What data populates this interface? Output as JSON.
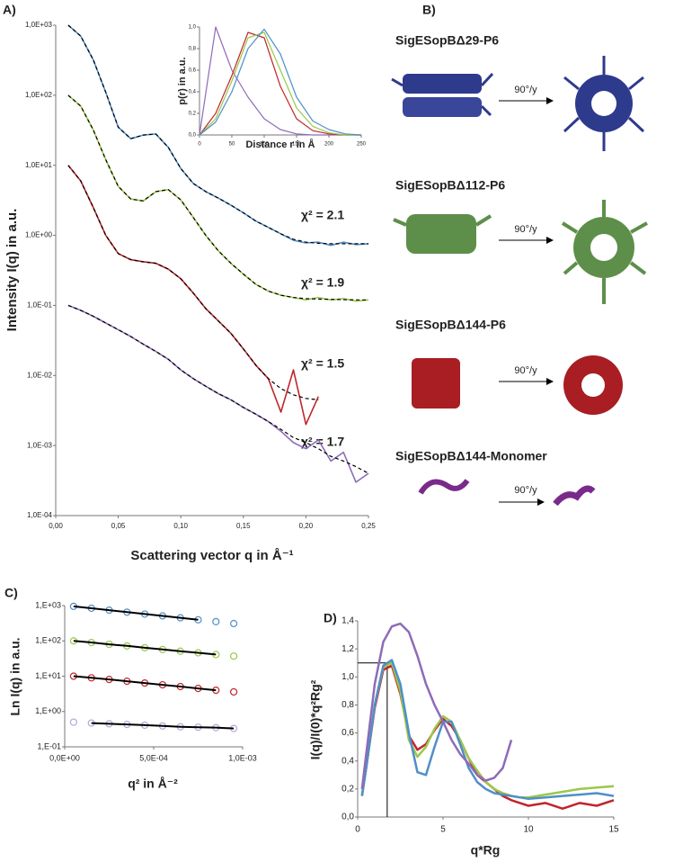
{
  "chart_data": [
    {
      "type": "line",
      "panel_label": "A)",
      "xlabel": "Scattering vector q in Å⁻¹",
      "ylabel": "Intensity I(q) in a.u.",
      "yscale": "log",
      "xlim": [
        0,
        0.25
      ],
      "xticks": [
        {
          "value": 0,
          "label": "0,00"
        },
        {
          "value": 0.05,
          "label": "0,05"
        },
        {
          "value": 0.1,
          "label": "0,10"
        },
        {
          "value": 0.15,
          "label": "0,15"
        },
        {
          "value": 0.2,
          "label": "0,20"
        },
        {
          "value": 0.25,
          "label": "0,25"
        }
      ],
      "ylim": [
        0.0001,
        1000
      ],
      "yticks": [
        {
          "value": 0.0001,
          "label": "1,0E-04"
        },
        {
          "value": 0.001,
          "label": "1,0E-03"
        },
        {
          "value": 0.01,
          "label": "1,0E-02"
        },
        {
          "value": 0.1,
          "label": "1,0E-01"
        },
        {
          "value": 1,
          "label": "1,0E+00"
        },
        {
          "value": 10,
          "label": "1,0E+01"
        },
        {
          "value": 100,
          "label": "1,0E+02"
        },
        {
          "value": 1000,
          "label": "1,0E+03"
        }
      ],
      "annotations": [
        "χ² = 2.1",
        "χ² = 1.9",
        "χ² = 1.5",
        "χ² = 1.7"
      ],
      "x": [
        0.01,
        0.02,
        0.03,
        0.04,
        0.05,
        0.06,
        0.07,
        0.08,
        0.09,
        0.1,
        0.11,
        0.12,
        0.13,
        0.14,
        0.15,
        0.16,
        0.17,
        0.18,
        0.19,
        0.2,
        0.21,
        0.22,
        0.23,
        0.24,
        0.25
      ],
      "series": [
        {
          "color": "#4f8fc8",
          "style": "solid",
          "values": [
            1000,
            700,
            320,
            110,
            35,
            24,
            27,
            28,
            18,
            9,
            5.5,
            4.2,
            3.4,
            2.7,
            2.1,
            1.6,
            1.3,
            1.05,
            0.85,
            0.78,
            0.8,
            0.72,
            0.8,
            0.74,
            0.76
          ]
        },
        {
          "color": "#9bc84a",
          "style": "solid",
          "values": [
            100,
            70,
            32,
            12,
            5,
            3.3,
            3.1,
            4.2,
            4.5,
            3.2,
            1.8,
            1.0,
            0.6,
            0.4,
            0.28,
            0.2,
            0.16,
            0.14,
            0.13,
            0.12,
            0.13,
            0.12,
            0.125,
            0.115,
            0.12
          ]
        },
        {
          "color": "#c0262a",
          "style": "solid",
          "values": [
            10,
            6,
            2.5,
            1.0,
            0.55,
            0.45,
            0.42,
            0.4,
            0.33,
            0.24,
            0.15,
            0.09,
            0.06,
            0.04,
            0.024,
            0.014,
            0.009,
            0.003,
            0.012,
            0.002,
            0.005,
            null,
            null,
            null,
            null
          ]
        },
        {
          "color": "#8e6bb8",
          "style": "solid",
          "values": [
            0.1,
            0.085,
            0.07,
            0.056,
            0.045,
            0.036,
            0.028,
            0.022,
            0.017,
            0.012,
            0.009,
            0.007,
            0.0055,
            0.0045,
            0.0035,
            0.0028,
            0.0022,
            0.0016,
            0.0011,
            0.0009,
            0.0012,
            0.0006,
            0.0008,
            0.0003,
            0.0004
          ]
        },
        {
          "color": "#000000",
          "style": "dashed",
          "values": [
            1000,
            700,
            320,
            110,
            35,
            24,
            27,
            28,
            18,
            9,
            5.5,
            4.2,
            3.4,
            2.7,
            2.1,
            1.6,
            1.3,
            1.05,
            0.88,
            0.8,
            0.77,
            0.76,
            0.76,
            0.76,
            0.76
          ]
        },
        {
          "color": "#000000",
          "style": "dashed",
          "values": [
            100,
            70,
            32,
            12,
            5,
            3.3,
            3.1,
            4.2,
            4.5,
            3.2,
            1.8,
            1.0,
            0.6,
            0.4,
            0.28,
            0.2,
            0.16,
            0.14,
            0.13,
            0.125,
            0.123,
            0.122,
            0.121,
            0.12,
            0.12
          ]
        },
        {
          "color": "#000000",
          "style": "dashed",
          "values": [
            10,
            6,
            2.5,
            1.0,
            0.55,
            0.45,
            0.42,
            0.4,
            0.33,
            0.24,
            0.15,
            0.09,
            0.06,
            0.04,
            0.024,
            0.014,
            0.009,
            0.0065,
            0.0053,
            0.0047,
            0.0045,
            null,
            null,
            null,
            null
          ]
        },
        {
          "color": "#000000",
          "style": "dashed",
          "values": [
            0.1,
            0.085,
            0.07,
            0.056,
            0.045,
            0.036,
            0.028,
            0.022,
            0.017,
            0.012,
            0.009,
            0.007,
            0.0055,
            0.0045,
            0.0035,
            0.0028,
            0.0022,
            0.0017,
            0.0013,
            0.0011,
            0.0009,
            0.0007,
            0.0006,
            0.0005,
            0.0004
          ]
        }
      ]
    },
    {
      "type": "line",
      "xlabel": "Distance r in Å",
      "ylabel": "p(r) in a.u.",
      "xlim": [
        0,
        250
      ],
      "xticks": [
        0,
        50,
        100,
        150,
        200,
        250
      ],
      "ylim": [
        0,
        1
      ],
      "yticks": [
        {
          "value": 0,
          "label": "0,0"
        },
        {
          "value": 0.2,
          "label": "0,2"
        },
        {
          "value": 0.4,
          "label": "0,4"
        },
        {
          "value": 0.6,
          "label": "0,6"
        },
        {
          "value": 0.8,
          "label": "0,8"
        },
        {
          "value": 1,
          "label": "1,0"
        }
      ],
      "x": [
        0,
        25,
        50,
        75,
        100,
        125,
        150,
        175,
        200,
        225,
        250
      ],
      "series": [
        {
          "color": "#8e6bb8",
          "style": "solid",
          "values": [
            0,
            1.0,
            0.6,
            0.35,
            0.15,
            0.05,
            0.01,
            0,
            0,
            0,
            0
          ]
        },
        {
          "color": "#c0262a",
          "style": "solid",
          "values": [
            0,
            0.2,
            0.55,
            0.95,
            0.9,
            0.45,
            0.15,
            0.04,
            0.01,
            0,
            0
          ]
        },
        {
          "color": "#9bc84a",
          "style": "solid",
          "values": [
            0,
            0.15,
            0.5,
            0.9,
            0.95,
            0.6,
            0.25,
            0.08,
            0.02,
            0,
            0
          ]
        },
        {
          "color": "#4f8fc8",
          "style": "solid",
          "values": [
            0,
            0.12,
            0.4,
            0.8,
            0.98,
            0.75,
            0.35,
            0.13,
            0.05,
            0.01,
            0
          ]
        }
      ]
    },
    {
      "type": "scatter",
      "panel_label": "C)",
      "xlabel": "q² in Å⁻²",
      "ylabel": "Ln I(q) in a.u.",
      "yscale": "log",
      "xlim": [
        0,
        0.001
      ],
      "xticks": [
        {
          "value": 0,
          "label": "0,0E+00"
        },
        {
          "value": 0.0005,
          "label": "5,0E-04"
        },
        {
          "value": 0.001,
          "label": "1,0E-03"
        }
      ],
      "ylim": [
        0.1,
        1000
      ],
      "yticks": [
        {
          "value": 0.1,
          "label": "1,E-01"
        },
        {
          "value": 1,
          "label": "1,E+00"
        },
        {
          "value": 10,
          "label": "1,E+01"
        },
        {
          "value": 100,
          "label": "1,E+02"
        },
        {
          "value": 1000,
          "label": "1,E+03"
        }
      ],
      "x": [
        5e-05,
        0.00015,
        0.00025,
        0.00035,
        0.00045,
        0.00055,
        0.00065,
        0.00075,
        0.00085,
        0.00095
      ],
      "series": [
        {
          "color": "#4f8fc8",
          "style": "markers",
          "values": [
            950,
            840,
            740,
            650,
            575,
            510,
            450,
            395,
            350,
            310
          ]
        },
        {
          "color": "#9bc84a",
          "style": "markers",
          "values": [
            100,
            90,
            80,
            72,
            64,
            57,
            51,
            46,
            41,
            37
          ]
        },
        {
          "color": "#c0262a",
          "style": "markers",
          "values": [
            10,
            9,
            8.1,
            7.2,
            6.4,
            5.7,
            5.1,
            4.5,
            4.0,
            3.6
          ]
        },
        {
          "color": "#b9a5d6",
          "style": "markers",
          "values": [
            0.5,
            0.47,
            0.45,
            0.43,
            0.41,
            0.39,
            0.37,
            0.36,
            0.35,
            0.33
          ]
        },
        {
          "color": "#000000",
          "style": "line",
          "values": [
            950,
            840,
            740,
            650,
            575,
            510,
            450,
            395,
            null,
            null
          ]
        },
        {
          "color": "#000000",
          "style": "line",
          "values": [
            100,
            90,
            80,
            72,
            64,
            57,
            51,
            46,
            41,
            null
          ]
        },
        {
          "color": "#000000",
          "style": "line",
          "values": [
            10,
            9,
            8.1,
            7.2,
            6.4,
            5.7,
            5.1,
            4.5,
            4.0,
            null
          ]
        },
        {
          "color": "#000000",
          "style": "line",
          "values": [
            null,
            0.47,
            0.45,
            0.43,
            0.41,
            0.39,
            0.37,
            0.36,
            0.35,
            0.33
          ]
        }
      ]
    },
    {
      "type": "line",
      "panel_label": "D)",
      "xlabel": "q*Rg",
      "ylabel": "I(q)/I(0)*q²Rg²",
      "xlim": [
        0,
        15
      ],
      "xticks": [
        0,
        5,
        10,
        15
      ],
      "ylim": [
        0,
        1.4
      ],
      "yticks": [
        {
          "value": 0,
          "label": "0,0"
        },
        {
          "value": 0.2,
          "label": "0,2"
        },
        {
          "value": 0.4,
          "label": "0,4"
        },
        {
          "value": 0.6,
          "label": "0,6"
        },
        {
          "value": 0.8,
          "label": "0,8"
        },
        {
          "value": 1,
          "label": "1,0"
        },
        {
          "value": 1.2,
          "label": "1,2"
        },
        {
          "value": 1.4,
          "label": "1,4"
        }
      ],
      "reference": {
        "x": 1.73,
        "y": 1.1
      },
      "x": [
        0.25,
        0.5,
        1,
        1.5,
        2,
        2.5,
        3,
        3.5,
        4,
        4.5,
        5,
        5.5,
        6,
        6.5,
        7,
        7.5,
        8,
        8.5,
        9,
        9.5,
        10,
        11,
        12,
        13,
        14,
        15
      ],
      "series": [
        {
          "color": "#c0262a",
          "style": "solid",
          "values": [
            0.15,
            0.35,
            0.78,
            1.05,
            1.08,
            0.88,
            0.58,
            0.48,
            0.52,
            0.62,
            0.7,
            0.65,
            0.55,
            0.42,
            0.3,
            0.25,
            0.2,
            0.15,
            0.12,
            0.1,
            0.08,
            0.1,
            0.06,
            0.1,
            0.08,
            0.12
          ]
        },
        {
          "color": "#9bc84a",
          "style": "solid",
          "values": [
            0.15,
            0.35,
            0.8,
            1.07,
            1.1,
            0.9,
            0.55,
            0.43,
            0.5,
            0.63,
            0.72,
            0.68,
            0.55,
            0.42,
            0.33,
            0.25,
            0.2,
            0.17,
            0.15,
            0.14,
            0.14,
            0.16,
            0.18,
            0.2,
            0.21,
            0.22
          ]
        },
        {
          "color": "#4f8fc8",
          "style": "solid",
          "values": [
            0.15,
            0.35,
            0.8,
            1.08,
            1.12,
            0.95,
            0.6,
            0.32,
            0.3,
            0.5,
            0.68,
            0.68,
            0.52,
            0.35,
            0.25,
            0.2,
            0.17,
            0.16,
            0.15,
            0.14,
            0.13,
            0.14,
            0.15,
            0.16,
            0.17,
            0.15
          ]
        },
        {
          "color": "#8e6bb8",
          "style": "solid",
          "values": [
            0.2,
            0.45,
            0.95,
            1.25,
            1.36,
            1.38,
            1.32,
            1.15,
            0.95,
            0.8,
            0.68,
            0.55,
            0.45,
            0.38,
            0.3,
            0.26,
            0.28,
            0.35,
            0.55,
            null,
            null,
            null,
            null,
            null,
            null,
            null
          ]
        }
      ]
    }
  ],
  "panel_b": {
    "label": "B)",
    "structures": [
      {
        "name": "SigESopBΔ29-P6",
        "rotation": "90°/y"
      },
      {
        "name": "SigESopBΔ112-P6",
        "rotation": "90°/y"
      },
      {
        "name": "SigESopBΔ144-P6",
        "rotation": "90°/y"
      },
      {
        "name": "SigESopBΔ144-Monomer",
        "rotation": "90°/y"
      }
    ]
  }
}
